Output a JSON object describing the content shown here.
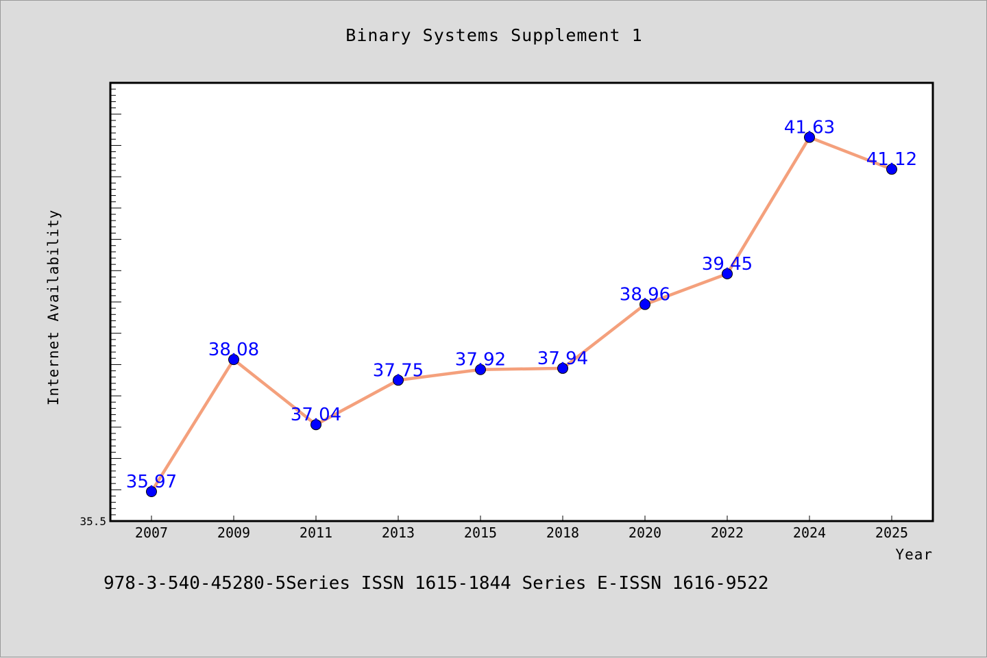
{
  "page": {
    "footer": "978-3-540-45280-5Series ISSN 1615-1844 Series E-ISSN 1616-9522"
  },
  "chart_data": {
    "type": "line",
    "title": "Binary Systems Supplement 1",
    "xlabel": "Year",
    "ylabel": "Internet Availability",
    "categories": [
      "2007",
      "2009",
      "2011",
      "2013",
      "2015",
      "2018",
      "2020",
      "2022",
      "2024",
      "2025"
    ],
    "series": [
      {
        "values": [
          35.97,
          38.08,
          37.04,
          37.75,
          37.92,
          37.94,
          38.96,
          39.45,
          41.63,
          41.12
        ],
        "color": "#f4a07c",
        "marker_color": "#0000ff",
        "label_color": "#0000ff"
      }
    ],
    "ylim": [
      35.5,
      42.5
    ],
    "yticks_labeled": [
      "35.5"
    ],
    "grid": false,
    "background": "#dcdcdc",
    "plot_background": "#ffffff"
  }
}
